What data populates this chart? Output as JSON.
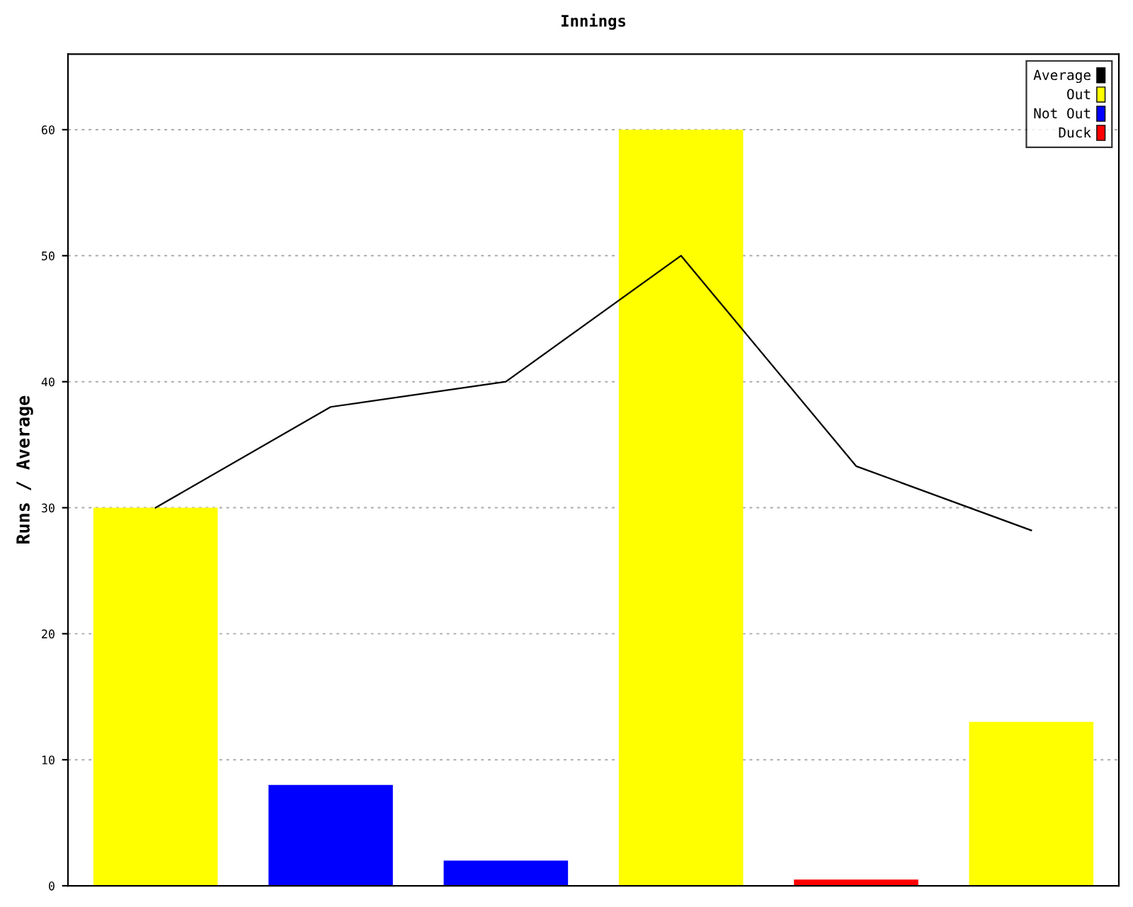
{
  "chart_data": {
    "type": "bar",
    "title": "Innings",
    "ylabel": "Runs / Average",
    "categories": [
      null,
      null,
      null,
      null,
      null,
      null
    ],
    "series": [
      {
        "name": "Average",
        "type": "line",
        "color": "#000000",
        "values": [
          30,
          38,
          40,
          50,
          33.3,
          28.2
        ]
      },
      {
        "name": "Out",
        "color": "#ffff00",
        "values": [
          30,
          null,
          null,
          60,
          null,
          13
        ]
      },
      {
        "name": "Not Out",
        "color": "#0000ff",
        "values": [
          null,
          8,
          2,
          null,
          null,
          null
        ]
      },
      {
        "name": "Duck",
        "color": "#ff0000",
        "values": [
          null,
          null,
          null,
          null,
          0.5,
          null
        ]
      }
    ],
    "ylim": [
      0,
      66
    ],
    "yticks": [
      0,
      10,
      20,
      30,
      40,
      50,
      60
    ],
    "grid": "y",
    "legend": "top right",
    "tick_labels": "y",
    "marker": "none",
    "line_style": "solid"
  }
}
